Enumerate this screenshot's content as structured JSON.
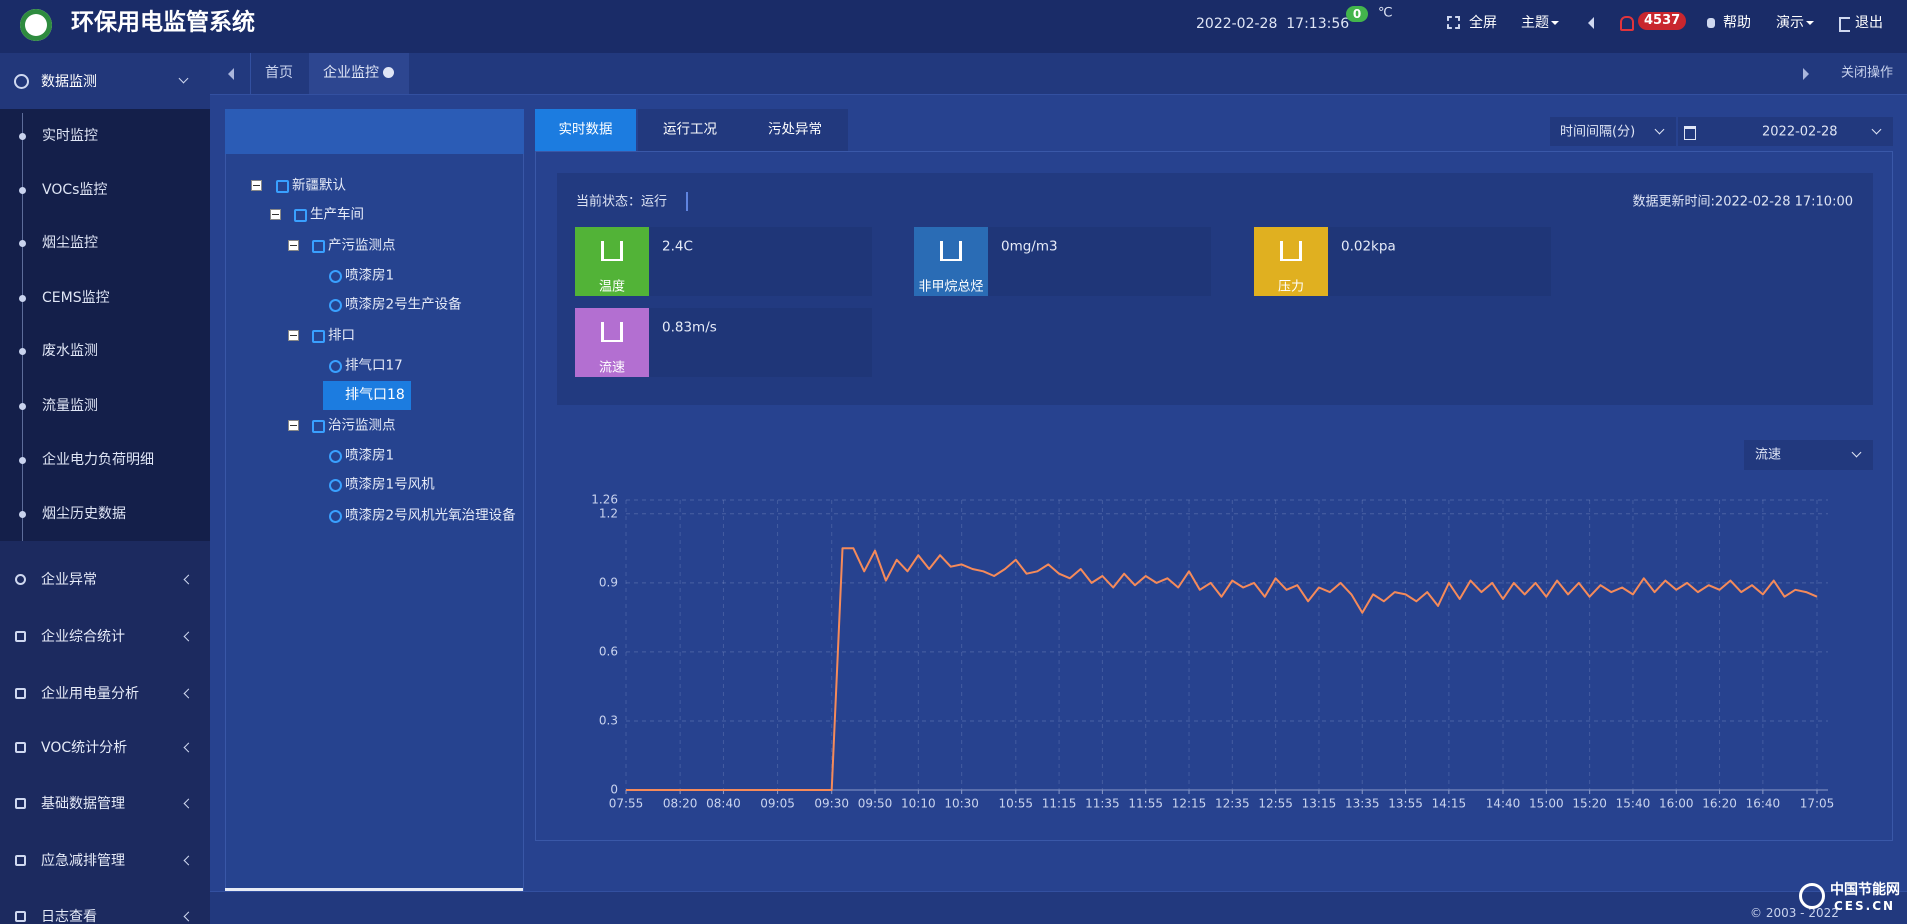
{
  "header": {
    "title": "环保用电监管系统",
    "datetime": "2022-02-28  17:13:56",
    "temp_badge": "0",
    "temp_unit": "℃",
    "fullscreen": "全屏",
    "theme": "主题",
    "alerts": "4537",
    "help": "帮助",
    "demo": "演示",
    "logout": "退出"
  },
  "sidebar": {
    "active": "数据监测",
    "submenu": [
      "实时监控",
      "VOCs监控",
      "烟尘监控",
      "CEMS监控",
      "废水监测",
      "流量监测",
      "企业电力负荷明细",
      "烟尘历史数据"
    ],
    "menus": [
      "企业异常",
      "企业综合统计",
      "企业用电量分析",
      "VOC统计分析",
      "基础数据管理",
      "应急减排管理",
      "日志查看"
    ]
  },
  "tabs": {
    "items": [
      "首页",
      "企业监控"
    ],
    "close_ops": "关闭操作"
  },
  "tree": [
    "新疆默认",
    "生产车间",
    "产污监测点",
    "喷漆房1",
    "喷漆房2号生产设备",
    "排口",
    "排气口17",
    "排气口18",
    "治污监测点",
    "喷漆房1",
    "喷漆房1号风机",
    "喷漆房2号风机光氧治理设备"
  ],
  "panel": {
    "tabs": [
      "实时数据",
      "运行工况",
      "污处异常"
    ],
    "interval": "时间间隔(分)",
    "date": "2022-02-28",
    "status": "当前状态：运行",
    "updated": "数据更新时间:2022-02-28 17:10:00",
    "cards": [
      {
        "label": "温度",
        "value": "2.4C"
      },
      {
        "label": "非甲烷总烃",
        "value": "0mg/m3"
      },
      {
        "label": "压力",
        "value": "0.02kpa"
      },
      {
        "label": "流速",
        "value": "0.83m/s"
      }
    ],
    "selector": "流速"
  },
  "chart_data": {
    "type": "line",
    "color": "#f58a5a",
    "grid": true,
    "ylim": [
      0,
      1.26
    ],
    "yticks": [
      0,
      0.3,
      0.6,
      0.9,
      1.2,
      1.26
    ],
    "categories": [
      "07:55",
      null,
      null,
      null,
      null,
      "08:20",
      null,
      null,
      null,
      "08:40",
      null,
      null,
      null,
      null,
      "09:05",
      null,
      null,
      null,
      null,
      "09:30",
      null,
      null,
      null,
      "09:50",
      null,
      null,
      null,
      "10:10",
      null,
      null,
      null,
      "10:30",
      null,
      null,
      null,
      null,
      "10:55",
      null,
      null,
      null,
      "11:15",
      null,
      null,
      null,
      "11:35",
      null,
      null,
      null,
      "11:55",
      null,
      null,
      null,
      "12:15",
      null,
      null,
      null,
      "12:35",
      null,
      null,
      null,
      "12:55",
      null,
      null,
      null,
      "13:15",
      null,
      null,
      null,
      "13:35",
      null,
      null,
      null,
      "13:55",
      null,
      null,
      null,
      "14:15",
      null,
      null,
      null,
      null,
      "14:40",
      null,
      null,
      null,
      "15:00",
      null,
      null,
      null,
      "15:20",
      null,
      null,
      null,
      "15:40",
      null,
      null,
      null,
      "16:00",
      null,
      null,
      null,
      "16:20",
      null,
      null,
      null,
      "16:40",
      null,
      null,
      null,
      null,
      "17:05"
    ],
    "values": [
      0,
      0,
      0,
      0,
      0,
      0,
      0,
      0,
      0,
      0,
      0,
      0,
      0,
      0,
      0,
      0,
      0,
      0,
      0,
      0,
      1.05,
      1.05,
      0.95,
      1.04,
      0.91,
      1.0,
      0.95,
      1.02,
      0.96,
      1.02,
      0.97,
      0.98,
      0.96,
      0.95,
      0.93,
      0.96,
      1.0,
      0.94,
      0.95,
      0.98,
      0.94,
      0.92,
      0.96,
      0.9,
      0.93,
      0.88,
      0.94,
      0.89,
      0.93,
      0.9,
      0.92,
      0.88,
      0.95,
      0.87,
      0.9,
      0.84,
      0.91,
      0.88,
      0.9,
      0.84,
      0.92,
      0.87,
      0.89,
      0.82,
      0.88,
      0.86,
      0.9,
      0.85,
      0.77,
      0.85,
      0.82,
      0.86,
      0.85,
      0.82,
      0.86,
      0.8,
      0.9,
      0.83,
      0.91,
      0.86,
      0.9,
      0.83,
      0.9,
      0.85,
      0.9,
      0.84,
      0.91,
      0.85,
      0.9,
      0.84,
      0.89,
      0.86,
      0.88,
      0.85,
      0.92,
      0.86,
      0.91,
      0.87,
      0.9,
      0.86,
      0.89,
      0.87,
      0.91,
      0.86,
      0.89,
      0.85,
      0.91,
      0.84,
      0.87,
      0.86,
      0.84
    ]
  },
  "footer": {
    "copyright": "© 2003 - 2022",
    "watermark": "中国节能网",
    "watermark_sub": "CES.CN"
  }
}
